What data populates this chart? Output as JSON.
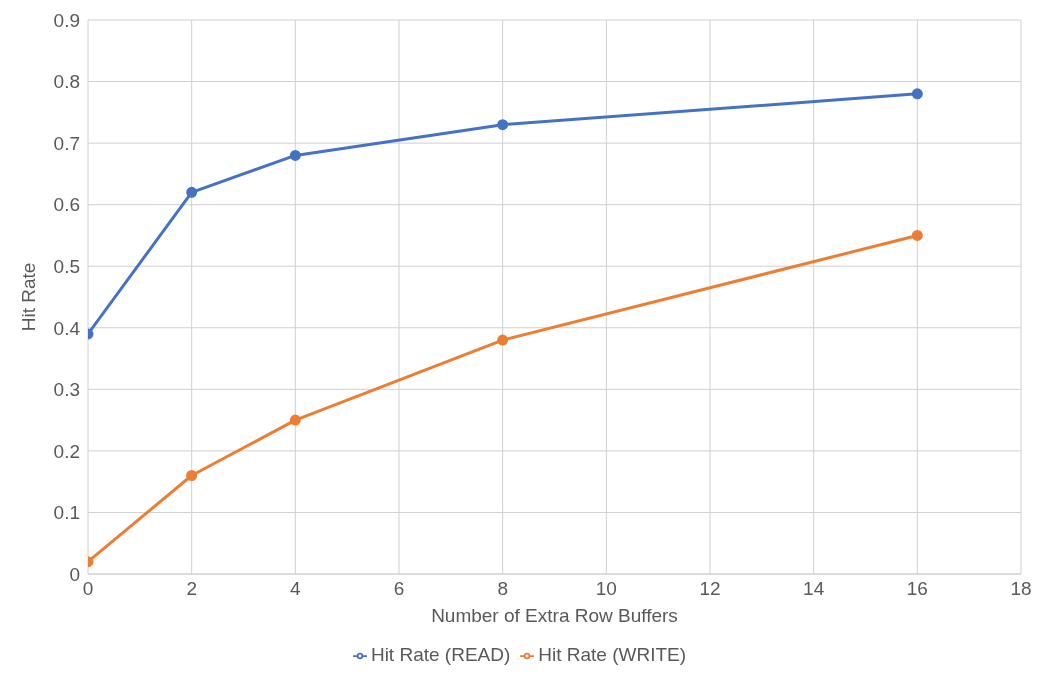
{
  "chart_data": {
    "type": "line",
    "xlabel": "Number of Extra Row Buffers",
    "ylabel": "Hit Rate",
    "x": [
      0,
      2,
      4,
      8,
      16
    ],
    "series": [
      {
        "name": "Hit Rate (READ)",
        "color": "#4472c4",
        "values": [
          0.39,
          0.62,
          0.68,
          0.73,
          0.78
        ]
      },
      {
        "name": "Hit Rate (WRITE)",
        "color": "#ed7d31",
        "values": [
          0.02,
          0.16,
          0.25,
          0.38,
          0.55
        ]
      }
    ],
    "xlim": [
      0,
      18
    ],
    "xticks": [
      0,
      2,
      4,
      6,
      8,
      10,
      12,
      14,
      16,
      18
    ],
    "ylim": [
      0,
      0.9
    ],
    "yticks": [
      0,
      0.1,
      0.2,
      0.3,
      0.4,
      0.5,
      0.6,
      0.7,
      0.8,
      0.9
    ],
    "grid": true,
    "legend": "bottom",
    "marker": "circle",
    "line_style": "solid"
  }
}
